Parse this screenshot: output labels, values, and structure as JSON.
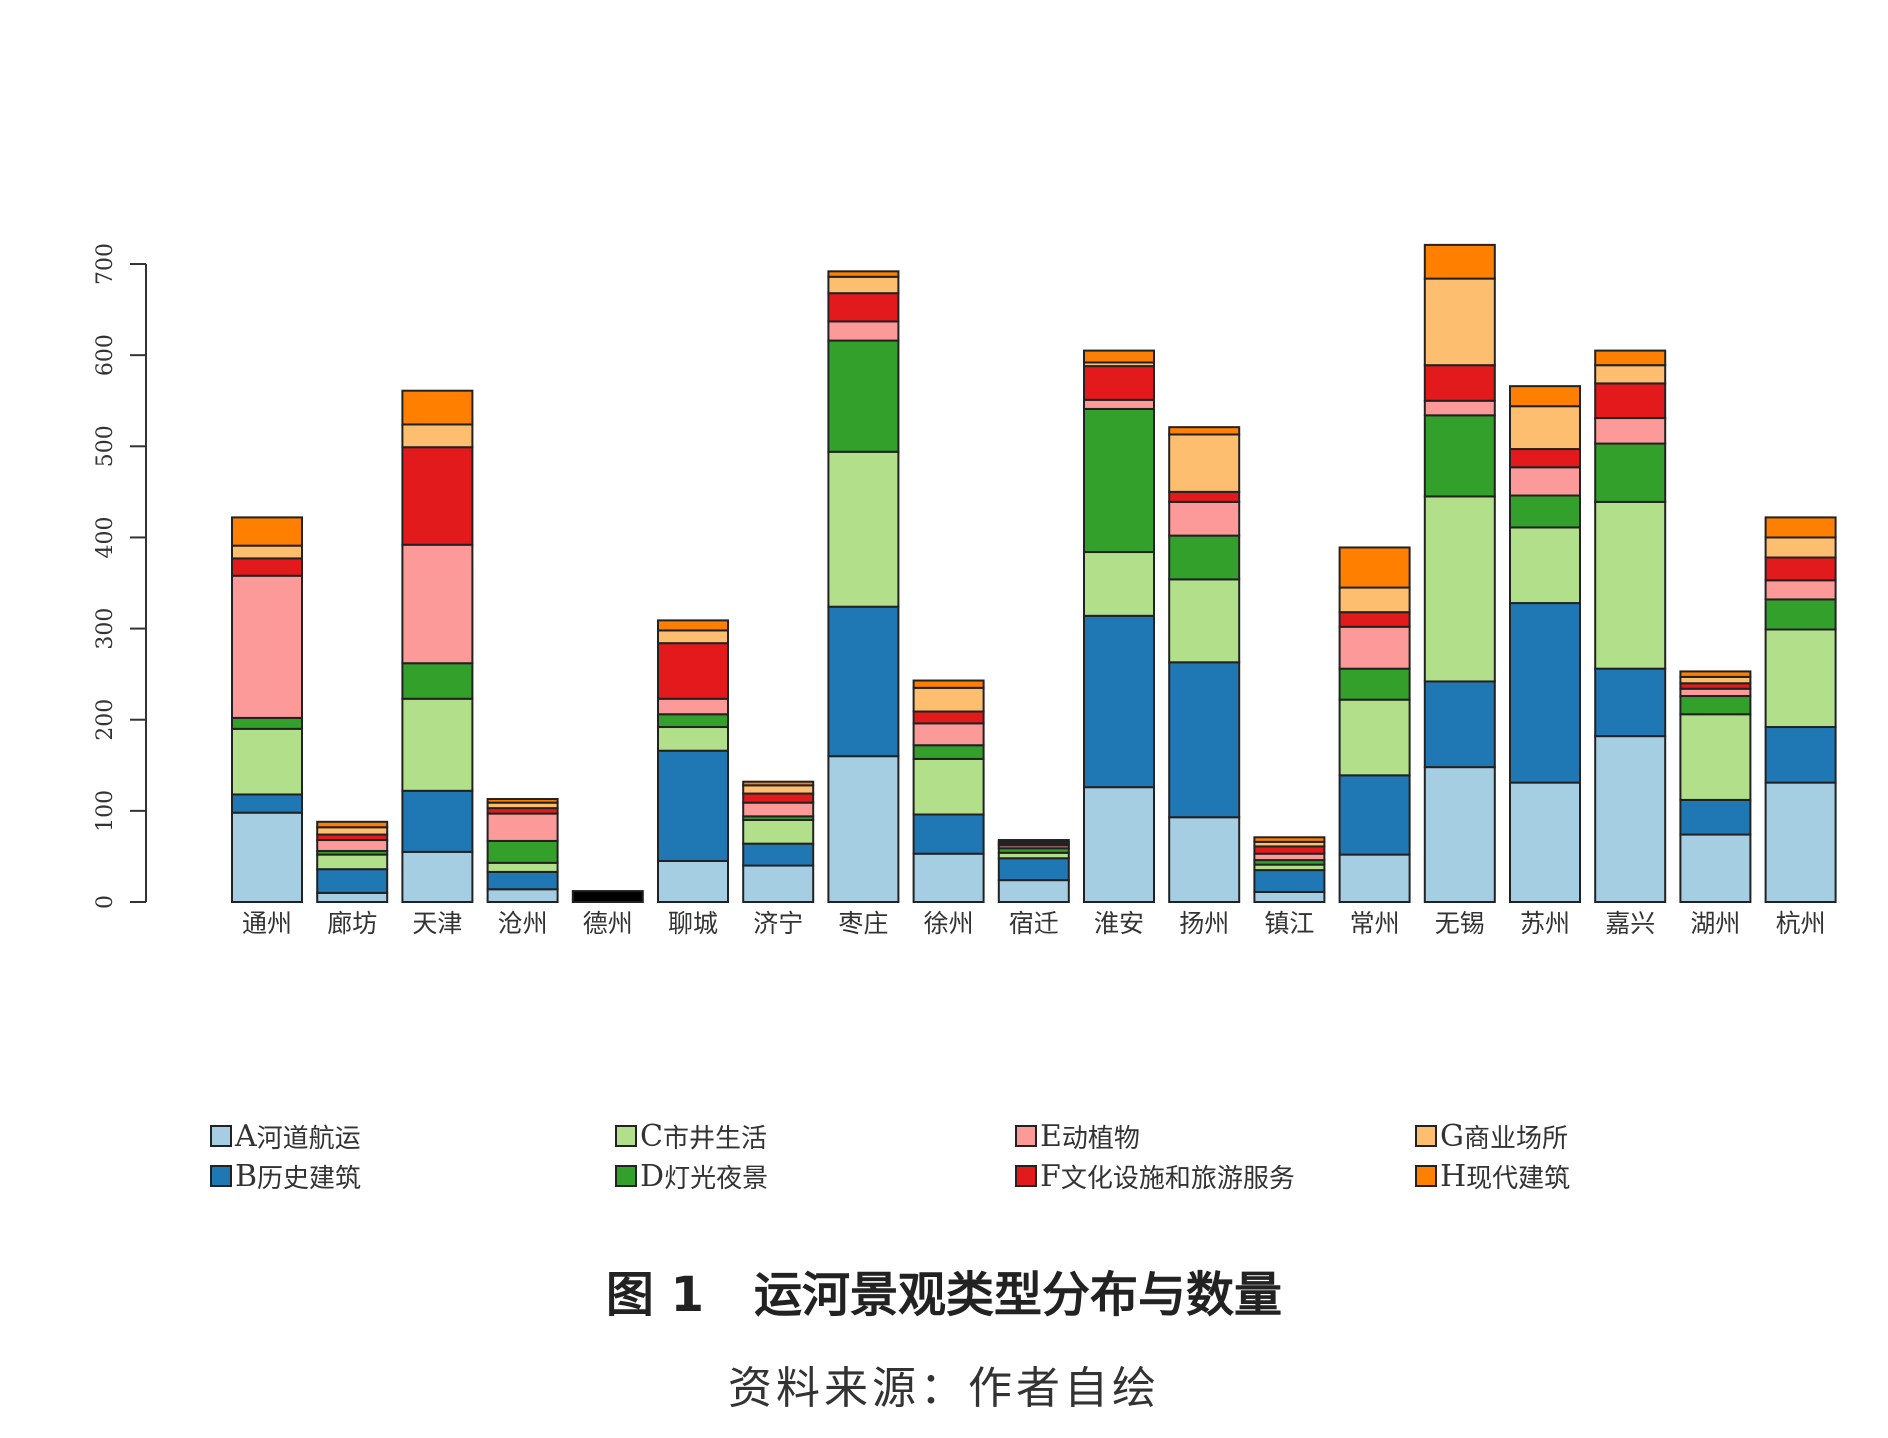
{
  "chart_data": {
    "type": "bar",
    "stacked": true,
    "categories": [
      "通州",
      "廊坊",
      "天津",
      "沧州",
      "德州",
      "聊城",
      "济宁",
      "枣庄",
      "徐州",
      "宿迁",
      "淮安",
      "扬州",
      "镇江",
      "常州",
      "无锡",
      "苏州",
      "嘉兴",
      "湖州",
      "杭州"
    ],
    "ylim": [
      0,
      720
    ],
    "yticks": [
      0,
      100,
      200,
      300,
      400,
      500,
      600,
      700
    ],
    "grid": false,
    "legend_position": "bottom",
    "series": [
      {
        "name": "A",
        "label": "河道航运",
        "color": "#a6cee3",
        "values": [
          98,
          10,
          55,
          14,
          0,
          45,
          40,
          160,
          53,
          24,
          126,
          93,
          11,
          52,
          148,
          131,
          182,
          74,
          131
        ]
      },
      {
        "name": "B",
        "label": "历史建筑",
        "color": "#1f78b4",
        "values": [
          20,
          26,
          67,
          19,
          0,
          121,
          24,
          164,
          43,
          24,
          188,
          170,
          24,
          87,
          94,
          197,
          74,
          38,
          61
        ]
      },
      {
        "name": "C",
        "label": "市井生活",
        "color": "#b2df8a",
        "values": [
          72,
          16,
          101,
          10,
          0,
          26,
          26,
          170,
          61,
          6,
          70,
          91,
          6,
          83,
          203,
          83,
          183,
          94,
          107
        ]
      },
      {
        "name": "D",
        "label": "灯光夜景",
        "color": "#33a02c",
        "values": [
          12,
          4,
          39,
          24,
          0,
          14,
          4,
          122,
          15,
          5,
          157,
          48,
          5,
          34,
          89,
          35,
          64,
          20,
          33
        ]
      },
      {
        "name": "E",
        "label": "动植物",
        "color": "#fb9a99",
        "values": [
          156,
          12,
          130,
          30,
          0,
          17,
          15,
          21,
          24,
          3,
          10,
          37,
          7,
          46,
          16,
          31,
          28,
          8,
          21
        ]
      },
      {
        "name": "F",
        "label": "文化设施和旅游服务",
        "color": "#e31a1c",
        "values": [
          19,
          6,
          107,
          6,
          0,
          61,
          10,
          31,
          13,
          2,
          37,
          11,
          8,
          16,
          39,
          20,
          38,
          6,
          25
        ]
      },
      {
        "name": "G",
        "label": "商业场所",
        "color": "#fdbf6f",
        "values": [
          14,
          8,
          25,
          6,
          0,
          14,
          9,
          18,
          26,
          2,
          4,
          63,
          5,
          27,
          95,
          47,
          20,
          7,
          22
        ]
      },
      {
        "name": "H",
        "label": "现代建筑",
        "color": "#ff7f00",
        "values": [
          31,
          6,
          37,
          4,
          12,
          11,
          4,
          6,
          8,
          2,
          13,
          8,
          5,
          44,
          37,
          22,
          16,
          6,
          22
        ]
      }
    ],
    "special_bars": [
      {
        "category": "德州",
        "color": "#000000"
      }
    ]
  },
  "legend": [
    {
      "key": "A",
      "text": "河道航运",
      "color": "#a6cee3"
    },
    {
      "key": "B",
      "text": "历史建筑",
      "color": "#1f78b4"
    },
    {
      "key": "C",
      "text": "市井生活",
      "color": "#b2df8a"
    },
    {
      "key": "D",
      "text": "灯光夜景",
      "color": "#33a02c"
    },
    {
      "key": "E",
      "text": "动植物",
      "color": "#fb9a99"
    },
    {
      "key": "F",
      "text": "文化设施和旅游服务",
      "color": "#e31a1c"
    },
    {
      "key": "G",
      "text": "商业场所",
      "color": "#fdbf6f"
    },
    {
      "key": "H",
      "text": "现代建筑",
      "color": "#ff7f00"
    }
  ],
  "caption": {
    "figure_number": "图 1",
    "title": "运河景观类型分布与数量",
    "source": "资料来源：作者自绘"
  }
}
